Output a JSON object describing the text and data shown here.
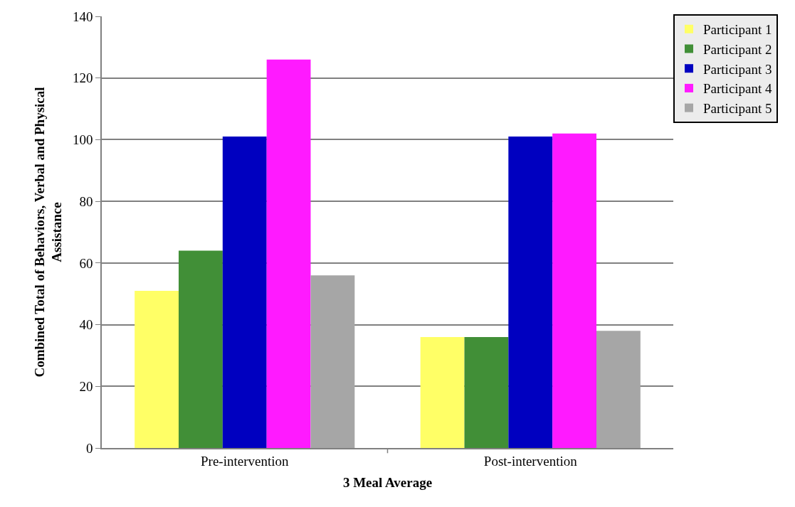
{
  "chart_data": {
    "type": "bar",
    "xlabel": "3 Meal Average",
    "ylabel": "Combined Total of Behaviors, Verbal and Physical Assistance",
    "categories": [
      "Pre-intervention",
      "Post-intervention"
    ],
    "series": [
      {
        "name": "Participant 1",
        "color": "#ffff66",
        "values": [
          51,
          36
        ]
      },
      {
        "name": "Participant 2",
        "color": "#418f37",
        "values": [
          64,
          36
        ]
      },
      {
        "name": "Participant 3",
        "color": "#0000c0",
        "values": [
          101,
          101
        ]
      },
      {
        "name": "Participant 4",
        "color": "#ff1aff",
        "values": [
          126,
          102
        ]
      },
      {
        "name": "Participant 5",
        "color": "#a6a6a6",
        "values": [
          56,
          38
        ]
      }
    ],
    "ylim": [
      0,
      140
    ],
    "yticks": [
      0,
      20,
      40,
      60,
      80,
      100,
      120,
      140
    ],
    "grid": "y",
    "legend": "top right"
  }
}
